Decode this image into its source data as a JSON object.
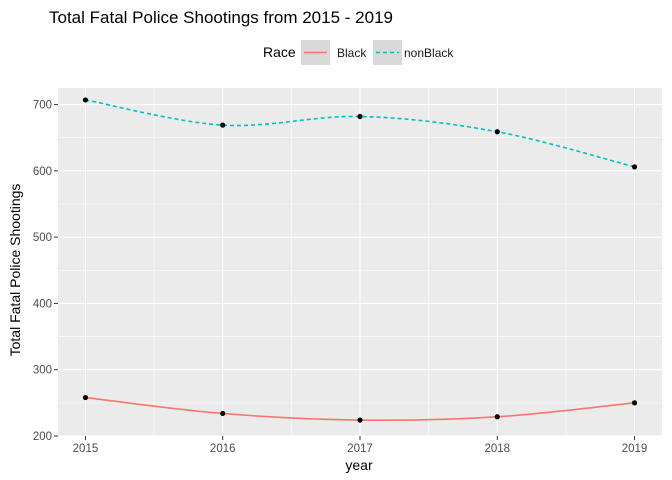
{
  "chart_data": {
    "type": "line",
    "title": "Total Fatal Police Shootings from 2015 - 2019",
    "xlabel": "year",
    "ylabel": "Total Fatal Police Shootings",
    "x": [
      2015,
      2016,
      2017,
      2018,
      2019
    ],
    "x_tick_labels": [
      "2015",
      "2016",
      "2017",
      "2018",
      "2019"
    ],
    "y_ticks": [
      200,
      300,
      400,
      500,
      600,
      700
    ],
    "y_tick_labels": [
      "200",
      "300",
      "400",
      "500",
      "600",
      "700"
    ],
    "xlim": [
      2014.8,
      2019.2
    ],
    "ylim": [
      200,
      725
    ],
    "legend": {
      "title": "Race",
      "position": "top"
    },
    "grid": true,
    "background": "#ebebeb",
    "series": [
      {
        "name": "Black",
        "values": [
          258,
          234,
          224,
          229,
          250
        ],
        "color": "#f8766d",
        "linestyle": "solid"
      },
      {
        "name": "nonBlack",
        "values": [
          707,
          669,
          682,
          659,
          606
        ],
        "color": "#00bfc4",
        "linestyle": "dashed"
      }
    ]
  }
}
